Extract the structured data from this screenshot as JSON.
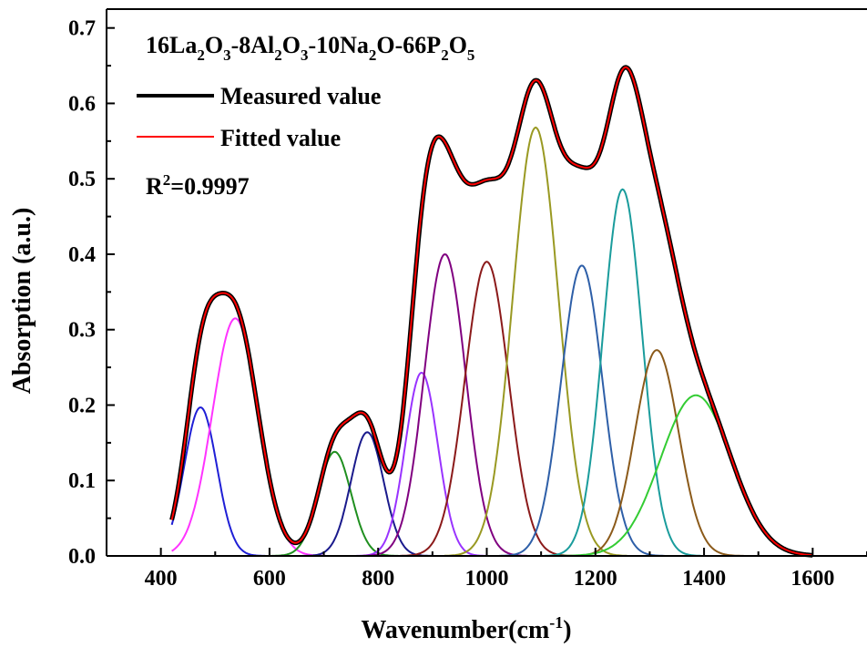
{
  "chart_data": {
    "type": "line",
    "title": "16La2O3-8Al2O3-10Na2O-66P2O5",
    "title_parts": [
      {
        "t": "16La",
        "sub": false
      },
      {
        "t": "2",
        "sub": true
      },
      {
        "t": "O",
        "sub": false
      },
      {
        "t": "3",
        "sub": true
      },
      {
        "t": "-8Al",
        "sub": false
      },
      {
        "t": "2",
        "sub": true
      },
      {
        "t": "O",
        "sub": false
      },
      {
        "t": "3",
        "sub": true
      },
      {
        "t": "-10Na",
        "sub": false
      },
      {
        "t": "2",
        "sub": true
      },
      {
        "t": "O-66P",
        "sub": false
      },
      {
        "t": "2",
        "sub": true
      },
      {
        "t": "O",
        "sub": false
      },
      {
        "t": "5",
        "sub": true
      }
    ],
    "xlabel": "Wavenumber(cm",
    "xlabel_sup": "-1",
    "xlabel_tail": ")",
    "ylabel": "Absorption (a.u.)",
    "xlim": [
      300,
      1700
    ],
    "ylim": [
      0,
      0.725
    ],
    "xticks": [
      400,
      600,
      800,
      1000,
      1200,
      1400,
      1600
    ],
    "yticks": [
      0.0,
      0.1,
      0.2,
      0.3,
      0.4,
      0.5,
      0.6,
      0.7
    ],
    "xtick_labels": [
      "400",
      "600",
      "800",
      "1000",
      "1200",
      "1400",
      "1600"
    ],
    "ytick_labels": [
      "0.0",
      "0.1",
      "0.2",
      "0.3",
      "0.4",
      "0.5",
      "0.6",
      "0.7"
    ],
    "legend": {
      "placement": "top-left",
      "entries": [
        {
          "name": "Measured value",
          "color": "#000000"
        },
        {
          "name": "Fitted value",
          "color": "#ff0000"
        }
      ]
    },
    "annotation": {
      "base": "R",
      "sup": "2",
      "rest": "=0.9997"
    },
    "measured_color": "#000000",
    "fitted_color": "#ff0000",
    "x_range": [
      420,
      1600
    ],
    "gaussian_components": [
      {
        "center": 473,
        "amplitude": 0.197,
        "sigma": 30,
        "color": "#1f1fd6"
      },
      {
        "center": 537,
        "amplitude": 0.315,
        "sigma": 42,
        "color": "#ff33ff"
      },
      {
        "center": 720,
        "amplitude": 0.138,
        "sigma": 30,
        "color": "#1f8f1f"
      },
      {
        "center": 780,
        "amplitude": 0.164,
        "sigma": 30,
        "color": "#1a1a8c"
      },
      {
        "center": 880,
        "amplitude": 0.243,
        "sigma": 30,
        "color": "#9933ff"
      },
      {
        "center": 923,
        "amplitude": 0.4,
        "sigma": 38,
        "color": "#800080"
      },
      {
        "center": 1000,
        "amplitude": 0.39,
        "sigma": 40,
        "color": "#8b1a1a"
      },
      {
        "center": 1090,
        "amplitude": 0.568,
        "sigma": 42,
        "color": "#999922"
      },
      {
        "center": 1175,
        "amplitude": 0.385,
        "sigma": 38,
        "color": "#2e5fa8"
      },
      {
        "center": 1250,
        "amplitude": 0.486,
        "sigma": 36,
        "color": "#1a9c9c"
      },
      {
        "center": 1313,
        "amplitude": 0.273,
        "sigma": 40,
        "color": "#8b5a1a"
      },
      {
        "center": 1385,
        "amplitude": 0.213,
        "sigma": 65,
        "color": "#33cc33"
      }
    ]
  }
}
